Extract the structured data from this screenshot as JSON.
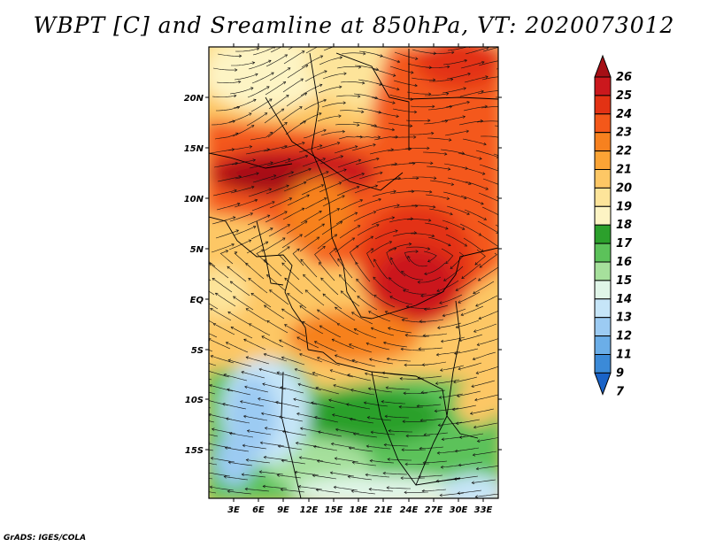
{
  "title": "WBPT [C] and Sreamline at 850hPa, VT: 2020073012",
  "credit": "GrADS: IGES/COLA",
  "map": {
    "lat_labels": [
      "20N",
      "15N",
      "10N",
      "5N",
      "EQ",
      "5S",
      "10S",
      "15S"
    ],
    "lon_labels": [
      "3E",
      "6E",
      "9E",
      "12E",
      "15E",
      "18E",
      "21E",
      "24E",
      "27E",
      "30E",
      "33E"
    ]
  },
  "colorbar": {
    "labels": [
      "26",
      "25",
      "24",
      "23",
      "22",
      "21",
      "20",
      "19",
      "18",
      "17",
      "16",
      "15",
      "14",
      "13",
      "12",
      "11",
      "9",
      "7"
    ],
    "colors": [
      "#a50f15",
      "#cb181d",
      "#e33214",
      "#f4581a",
      "#f7811f",
      "#fba435",
      "#fdc765",
      "#fde49a",
      "#fdf4c4",
      "#2ca02c",
      "#5cc25a",
      "#a6e09c",
      "#e0f5e8",
      "#c6e5f8",
      "#9ccbf3",
      "#6baee8",
      "#3b8ad8",
      "#1a63c8"
    ]
  }
}
